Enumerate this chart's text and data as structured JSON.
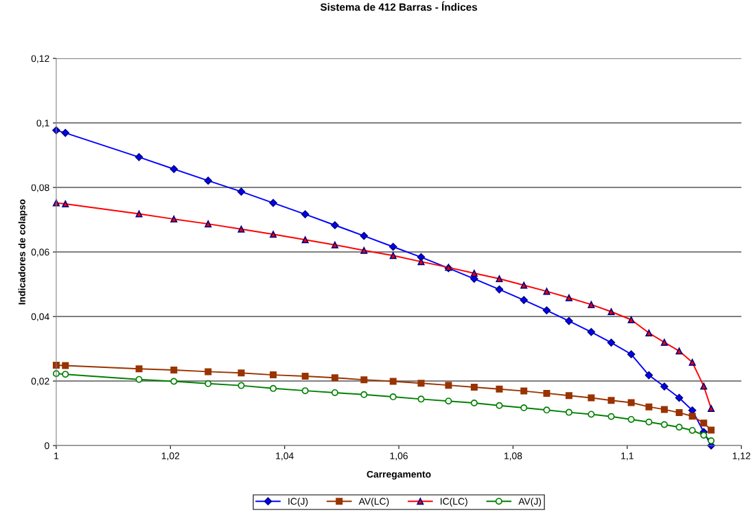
{
  "chart_data": {
    "type": "line",
    "title": "Sistema de 412 Barras - Índices",
    "xlabel": "Carregamento",
    "ylabel": "Indicadores de colapso",
    "x": [
      1.0,
      1.0016,
      1.0145,
      1.0206,
      1.0266,
      1.0324,
      1.038,
      1.0436,
      1.0488,
      1.0539,
      1.059,
      1.0639,
      1.0687,
      1.0732,
      1.0776,
      1.0819,
      1.0859,
      1.0898,
      1.0937,
      1.0972,
      1.1007,
      1.1038,
      1.1065,
      1.1091,
      1.1114,
      1.1134,
      1.1147
    ],
    "series": [
      {
        "name": "IC(J)",
        "color": "#0000ff",
        "marker": "diamond",
        "values": [
          0.0977,
          0.0969,
          0.0894,
          0.0857,
          0.0821,
          0.0787,
          0.0752,
          0.0717,
          0.0683,
          0.065,
          0.0616,
          0.0584,
          0.055,
          0.0517,
          0.0484,
          0.0451,
          0.0419,
          0.0386,
          0.0352,
          0.0319,
          0.0283,
          0.0218,
          0.0183,
          0.0148,
          0.0109,
          0.0042,
          0.0
        ]
      },
      {
        "name": "AV(LC)",
        "color": "#993300",
        "marker": "square",
        "values": [
          0.0249,
          0.0248,
          0.0238,
          0.0234,
          0.0229,
          0.0225,
          0.0219,
          0.0215,
          0.021,
          0.0204,
          0.0199,
          0.0193,
          0.0187,
          0.0181,
          0.0175,
          0.0169,
          0.0162,
          0.0155,
          0.0148,
          0.014,
          0.0133,
          0.012,
          0.0112,
          0.0102,
          0.0091,
          0.007,
          0.0048
        ]
      },
      {
        "name": "IC(LC)",
        "color": "#ff0000",
        "marker": "triangle",
        "values": [
          0.0752,
          0.0749,
          0.0718,
          0.0702,
          0.0687,
          0.0671,
          0.0655,
          0.0638,
          0.0622,
          0.0605,
          0.0589,
          0.057,
          0.0552,
          0.0534,
          0.0517,
          0.0497,
          0.0478,
          0.0458,
          0.0437,
          0.0415,
          0.039,
          0.0349,
          0.032,
          0.0293,
          0.0258,
          0.0184,
          0.0115
        ]
      },
      {
        "name": "AV(J)",
        "color": "#008000",
        "marker": "circle",
        "values": [
          0.0223,
          0.0221,
          0.0205,
          0.0199,
          0.0192,
          0.0186,
          0.0177,
          0.017,
          0.0164,
          0.0158,
          0.0151,
          0.0144,
          0.0138,
          0.0132,
          0.0124,
          0.0117,
          0.011,
          0.0103,
          0.0097,
          0.009,
          0.0081,
          0.0073,
          0.0065,
          0.0057,
          0.0047,
          0.0032,
          0.0015
        ]
      }
    ],
    "xlim": [
      1,
      1.12
    ],
    "xticks": [
      1,
      {
        "value": 1.02,
        "label": "1,02"
      },
      {
        "value": 1.04,
        "label": "1,04"
      },
      {
        "value": 1.06,
        "label": "1,06"
      },
      {
        "value": 1.08,
        "label": "1,08"
      },
      {
        "value": 1.1,
        "label": "1,1"
      },
      {
        "value": 1.12,
        "label": "1,12"
      }
    ],
    "ylim": [
      0,
      0.12
    ],
    "yticks": [
      0,
      {
        "value": 0.02,
        "label": "0,02"
      },
      {
        "value": 0.04,
        "label": "0,04"
      },
      {
        "value": 0.06,
        "label": "0,06"
      },
      {
        "value": 0.08,
        "label": "0,08"
      },
      {
        "value": 0.1,
        "label": "0,1"
      },
      {
        "value": 0.12,
        "label": "0,12"
      }
    ],
    "grid": "y",
    "legend": "bottom",
    "line_style": "solid"
  }
}
